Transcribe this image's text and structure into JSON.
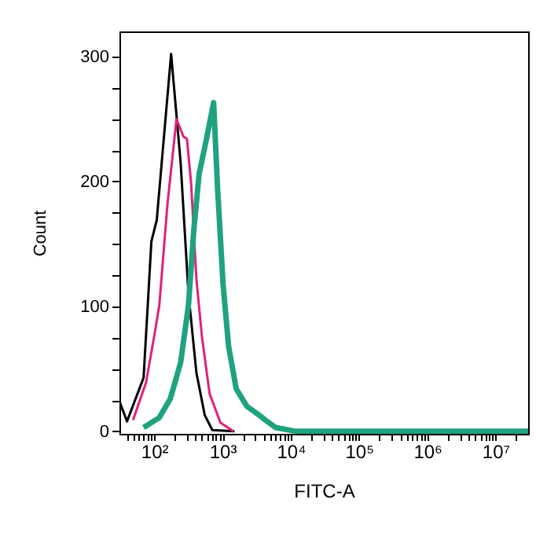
{
  "chart_data": {
    "type": "line",
    "xlabel": "FITC-A",
    "ylabel": "Count",
    "log": "x",
    "grid": false,
    "xlim": [
      31,
      30000000
    ],
    "ylim": [
      -2,
      320
    ],
    "xticks": [
      {
        "value": 40,
        "label": null
      },
      {
        "value": 50,
        "label": null
      },
      {
        "value": 60,
        "label": null
      },
      {
        "value": 70,
        "label": null
      },
      {
        "value": 80,
        "label": null
      },
      {
        "value": 90,
        "label": null
      },
      {
        "value": 100,
        "label": "10²"
      },
      {
        "value": 200,
        "label": null
      },
      {
        "value": 300,
        "label": null
      },
      {
        "value": 400,
        "label": null
      },
      {
        "value": 500,
        "label": null
      },
      {
        "value": 600,
        "label": null
      },
      {
        "value": 700,
        "label": null
      },
      {
        "value": 800,
        "label": null
      },
      {
        "value": 900,
        "label": null
      },
      {
        "value": 1000,
        "label": "10³"
      },
      {
        "value": 2000,
        "label": null
      },
      {
        "value": 3000,
        "label": null
      },
      {
        "value": 4000,
        "label": null
      },
      {
        "value": 5000,
        "label": null
      },
      {
        "value": 6000,
        "label": null
      },
      {
        "value": 7000,
        "label": null
      },
      {
        "value": 8000,
        "label": null
      },
      {
        "value": 9000,
        "label": null
      },
      {
        "value": 10000,
        "label": "10⁴"
      },
      {
        "value": 20000,
        "label": null
      },
      {
        "value": 30000,
        "label": null
      },
      {
        "value": 40000,
        "label": null
      },
      {
        "value": 50000,
        "label": null
      },
      {
        "value": 60000,
        "label": null
      },
      {
        "value": 70000,
        "label": null
      },
      {
        "value": 80000,
        "label": null
      },
      {
        "value": 90000,
        "label": null
      },
      {
        "value": 100000,
        "label": "10⁵"
      },
      {
        "value": 200000,
        "label": null
      },
      {
        "value": 300000,
        "label": null
      },
      {
        "value": 400000,
        "label": null
      },
      {
        "value": 500000,
        "label": null
      },
      {
        "value": 600000,
        "label": null
      },
      {
        "value": 700000,
        "label": null
      },
      {
        "value": 800000,
        "label": null
      },
      {
        "value": 900000,
        "label": null
      },
      {
        "value": 1000000,
        "label": "10⁶"
      },
      {
        "value": 2000000,
        "label": null
      },
      {
        "value": 3000000,
        "label": null
      },
      {
        "value": 4000000,
        "label": null
      },
      {
        "value": 5000000,
        "label": null
      },
      {
        "value": 6000000,
        "label": null
      },
      {
        "value": 7000000,
        "label": null
      },
      {
        "value": 8000000,
        "label": null
      },
      {
        "value": 9000000,
        "label": null
      },
      {
        "value": 10000000,
        "label": "10⁷"
      },
      {
        "value": 20000000,
        "label": null
      }
    ],
    "yticks": [
      0,
      {
        "value": 25,
        "label": null
      },
      {
        "value": 50,
        "label": null
      },
      {
        "value": 75,
        "label": null
      },
      100,
      {
        "value": 125,
        "label": null
      },
      {
        "value": 150,
        "label": null
      },
      {
        "value": 175,
        "label": null
      },
      200,
      {
        "value": 225,
        "label": null
      },
      {
        "value": 250,
        "label": null
      },
      {
        "value": 275,
        "label": null
      },
      300
    ],
    "series": [
      {
        "color": "#000000",
        "x": [
          31,
          40,
          70,
          91,
          109,
          177,
          244,
          318,
          415,
          550,
          710,
          1500
        ],
        "values": [
          24,
          8,
          43,
          152,
          169,
          302,
          215,
          110,
          47,
          13,
          1,
          0
        ]
      },
      {
        "color": "#e0217a",
        "x": [
          49,
          76,
          100,
          119,
          156,
          212,
          267,
          302,
          348,
          415,
          500,
          649,
          933,
          1450
        ],
        "values": [
          9,
          39,
          76,
          101,
          181,
          250,
          236,
          234,
          198,
          122,
          76,
          30,
          7,
          0
        ]
      },
      {
        "color": "#1fa37f",
        "x": [
          70,
          119,
          172,
          244,
          318,
          379,
          455,
          594,
          742,
          849,
          1020,
          1230,
          1590,
          2280,
          3250,
          4250,
          6000,
          12000,
          30000000
        ],
        "values": [
          3,
          11,
          26,
          55,
          101,
          160,
          206,
          236,
          263,
          194,
          118,
          68,
          34,
          20,
          14,
          9,
          3,
          0,
          0
        ]
      }
    ]
  }
}
